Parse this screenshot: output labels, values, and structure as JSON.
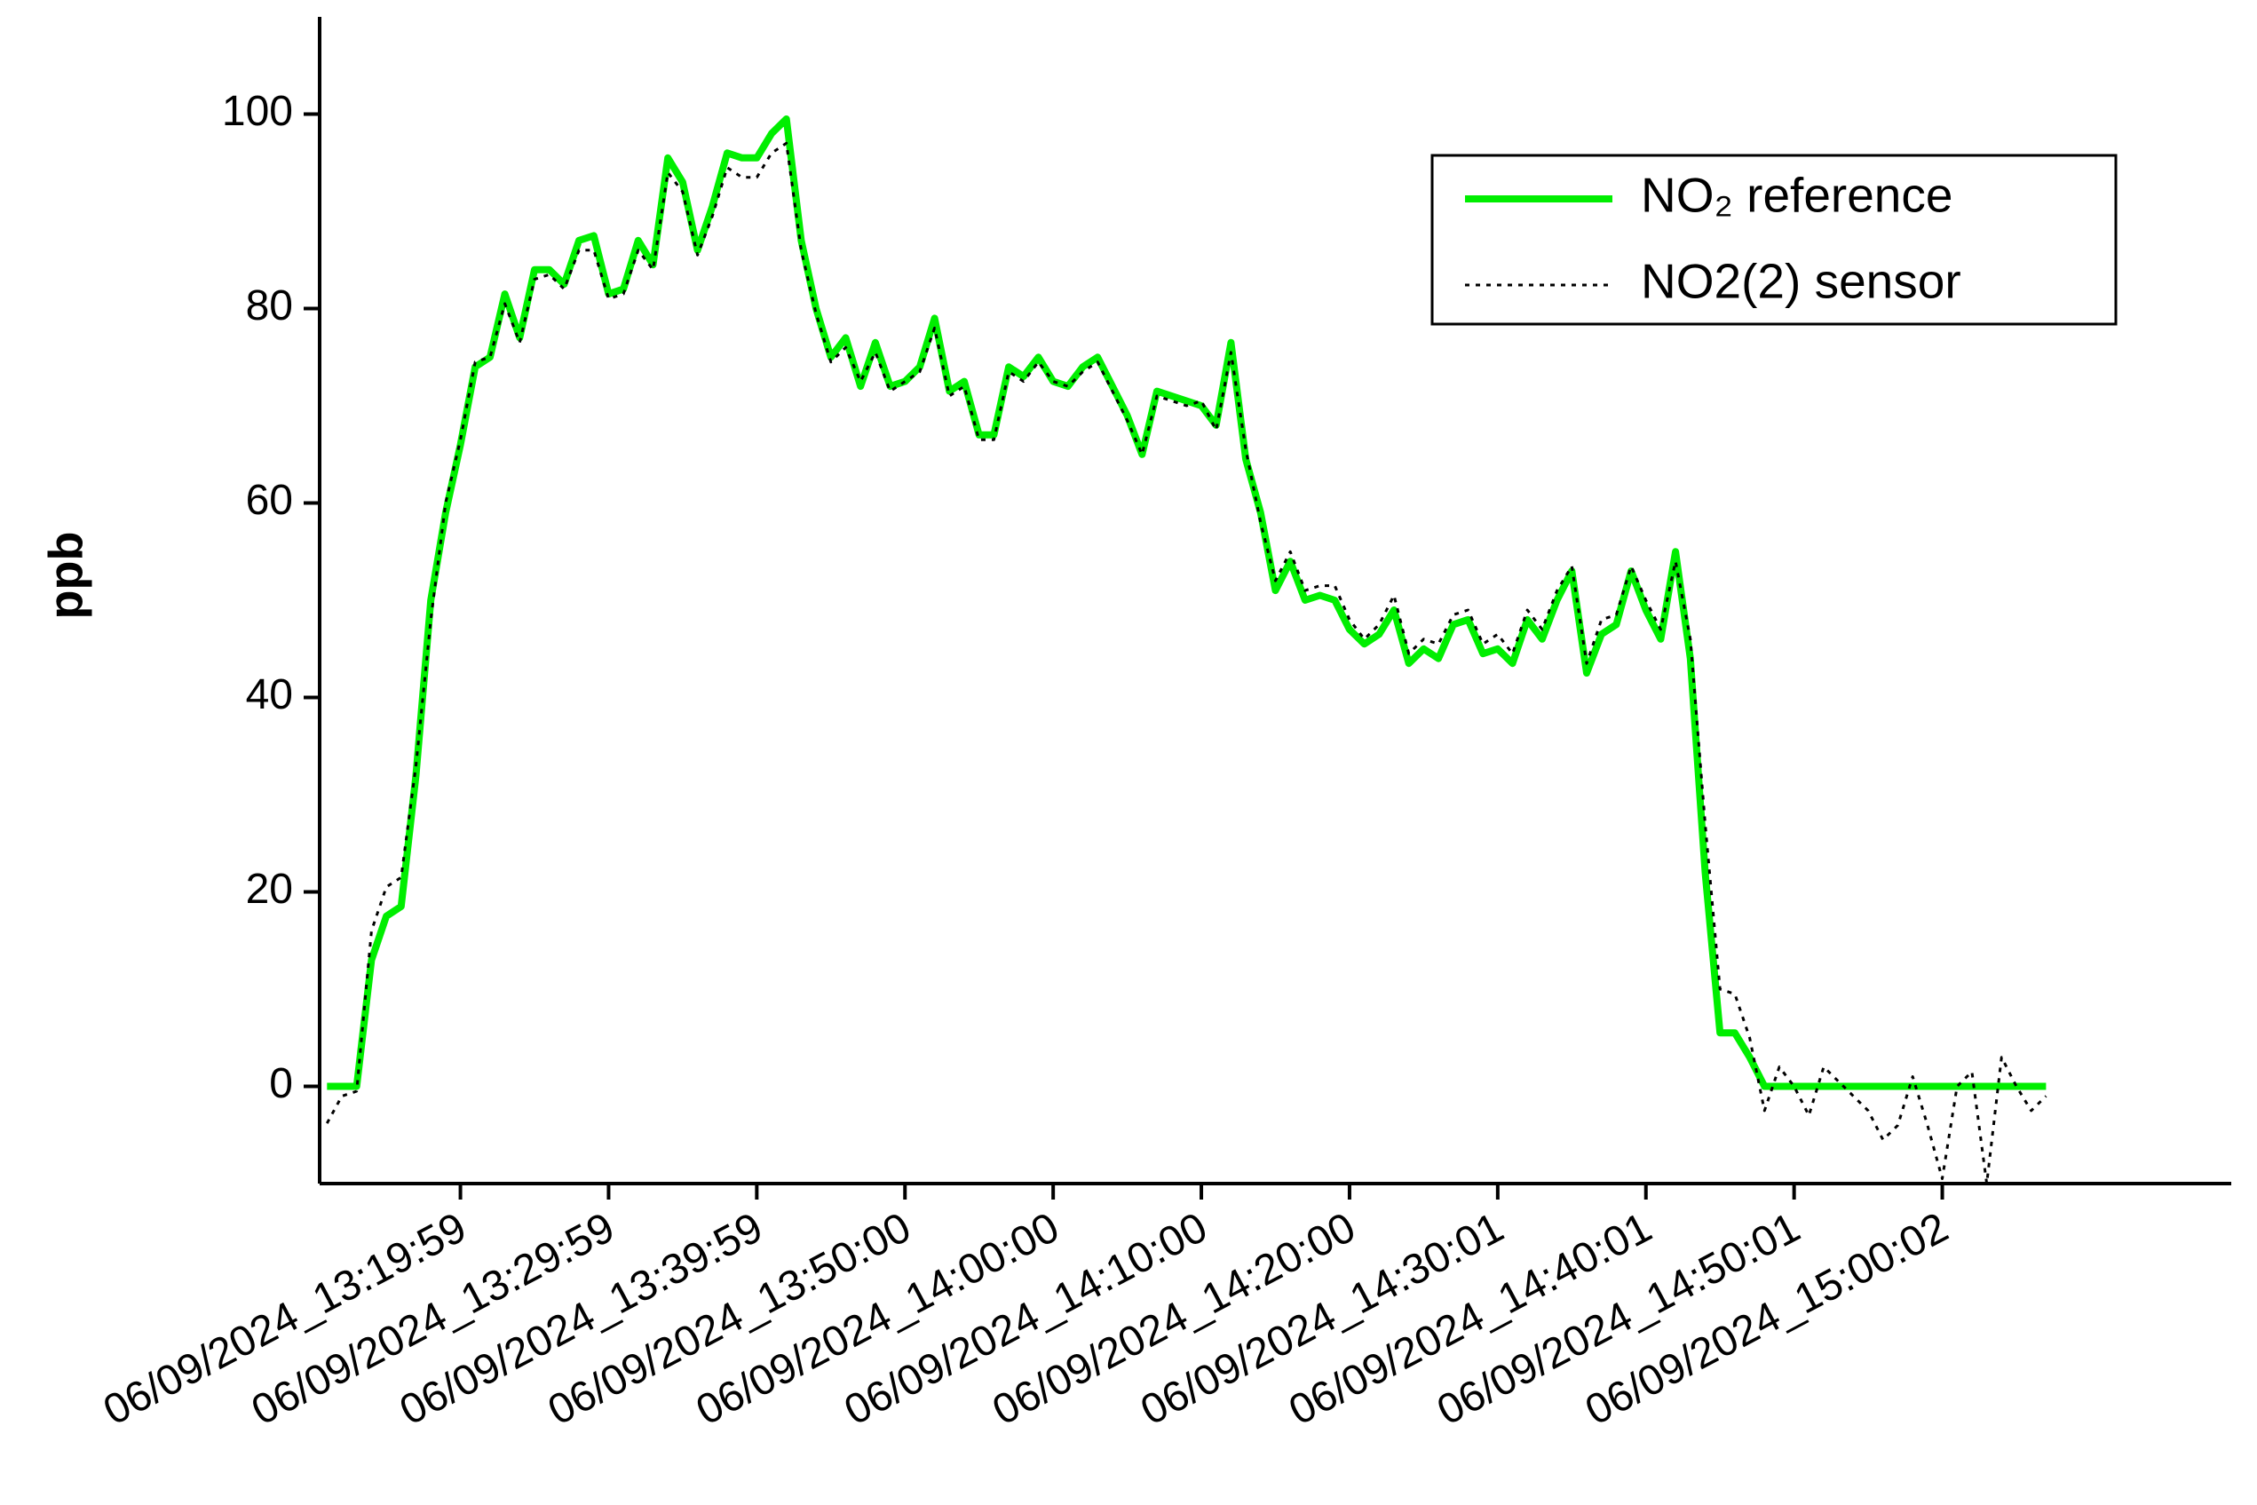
{
  "chart_data": {
    "type": "line",
    "y_label": "ppb",
    "categories": [
      null,
      null,
      null,
      null,
      null,
      null,
      null,
      null,
      null,
      "06/09/2024_13:19:59",
      null,
      null,
      null,
      null,
      null,
      null,
      null,
      null,
      null,
      "06/09/2024_13:29:59",
      null,
      null,
      null,
      null,
      null,
      null,
      null,
      null,
      null,
      "06/09/2024_13:39:59",
      null,
      null,
      null,
      null,
      null,
      null,
      null,
      null,
      null,
      "06/09/2024_13:50:00",
      null,
      null,
      null,
      null,
      null,
      null,
      null,
      null,
      null,
      "06/09/2024_14:00:00",
      null,
      null,
      null,
      null,
      null,
      null,
      null,
      null,
      null,
      "06/09/2024_14:10:00",
      null,
      null,
      null,
      null,
      null,
      null,
      null,
      null,
      null,
      "06/09/2024_14:20:00",
      null,
      null,
      null,
      null,
      null,
      null,
      null,
      null,
      null,
      "06/09/2024_14:30:01",
      null,
      null,
      null,
      null,
      null,
      null,
      null,
      null,
      null,
      "06/09/2024_14:40:01",
      null,
      null,
      null,
      null,
      null,
      null,
      null,
      null,
      null,
      "06/09/2024_14:50:01",
      null,
      null,
      null,
      null,
      null,
      null,
      null,
      null,
      null,
      "06/09/2024_15:00:02",
      null,
      null,
      null,
      null,
      null,
      null,
      null,
      null,
      null,
      null,
      null,
      null,
      null,
      null,
      null,
      null,
      null,
      null,
      null
    ],
    "series": [
      {
        "name": "NO₂ reference",
        "color": "#00ee00",
        "values": [
          0,
          0,
          0,
          13,
          17.5,
          18.5,
          32,
          50,
          59,
          66,
          74,
          75,
          81.5,
          77,
          84,
          84,
          82.5,
          87,
          87.5,
          81.5,
          82,
          87,
          84.5,
          95.5,
          93,
          86,
          90.5,
          96,
          95.5,
          95.5,
          98,
          99.5,
          87,
          80,
          75,
          77,
          72,
          76.5,
          72,
          72.5,
          74,
          79,
          71.5,
          72.5,
          67,
          67,
          74,
          73,
          75,
          72.5,
          72,
          74,
          75,
          72,
          69,
          65,
          71.5,
          71,
          70.5,
          70,
          68,
          76.5,
          64.5,
          59,
          51,
          54,
          50,
          50.5,
          50,
          47,
          45.5,
          46.5,
          49,
          43.5,
          45,
          44,
          47.5,
          48,
          44.5,
          45,
          43.5,
          48,
          46,
          50,
          53,
          42.5,
          46.5,
          47.5,
          53,
          49,
          46,
          55,
          44,
          22,
          5.5,
          5.5,
          3,
          0,
          0,
          0,
          0,
          0,
          0,
          0,
          0,
          0,
          0,
          0,
          0,
          0,
          0,
          0,
          0,
          0,
          0,
          0,
          0,
          null,
          null,
          null,
          null,
          null,
          null,
          null,
          null,
          null,
          null,
          null,
          null
        ]
      },
      {
        "name": "NO2(2) sensor",
        "color": "#000000",
        "values": [
          -3.8,
          -1,
          -0.5,
          16,
          20.5,
          21.5,
          33,
          48,
          60,
          66.5,
          74.5,
          75,
          80.5,
          76.5,
          83,
          83.5,
          82,
          86,
          86,
          81,
          81.5,
          86,
          84,
          94,
          92,
          85.5,
          89.5,
          94.5,
          93.5,
          93.5,
          96,
          97,
          86,
          79.5,
          74.5,
          76,
          72.5,
          75.5,
          71.5,
          72.5,
          73.5,
          78,
          71,
          72,
          66.5,
          66.5,
          73.5,
          72.5,
          74.5,
          72.5,
          72,
          73.5,
          74.5,
          71.5,
          68.5,
          65,
          71,
          70.5,
          70,
          70.5,
          67.5,
          75.5,
          65.5,
          58,
          52,
          55,
          51,
          51.5,
          51.5,
          48,
          46,
          47.5,
          50.5,
          44.5,
          46,
          45.5,
          48.5,
          49,
          45.5,
          46.5,
          44.5,
          49,
          47,
          51,
          53.5,
          43.5,
          48,
          48.5,
          53.5,
          50,
          47,
          54,
          46,
          27,
          10,
          9.5,
          5,
          -2.5,
          2,
          0,
          -3,
          2,
          0.5,
          -1,
          -2.5,
          -5.5,
          -4,
          1,
          -4,
          -9.5,
          0,
          1.5,
          -10,
          3,
          0,
          -2.5,
          -1,
          null,
          null,
          null,
          null,
          null,
          null,
          null,
          null,
          null,
          null,
          null,
          null
        ]
      }
    ],
    "ylim": [
      -10,
      110
    ],
    "yticks": [
      0,
      20,
      40,
      60,
      80,
      100
    ],
    "legend": "upper right"
  }
}
